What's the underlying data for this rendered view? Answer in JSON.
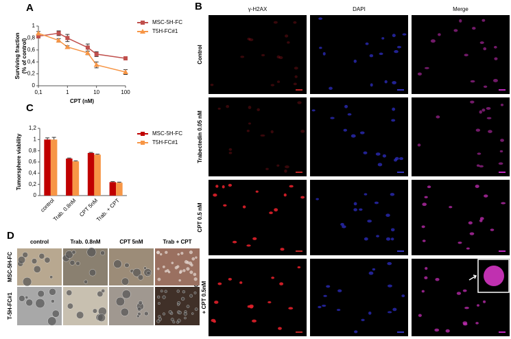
{
  "chart_data": [
    {
      "type": "line",
      "panel_label": "A",
      "xlabel": "CPT (nM)",
      "ylabel": [
        "Surviving fraction",
        "(% of control)"
      ],
      "xscale": "log",
      "x": [
        0.1,
        0.5,
        1,
        5,
        10,
        100
      ],
      "xlim": [
        0.1,
        100
      ],
      "xticks": [
        {
          "value": 0.1,
          "label": "0,1"
        },
        1,
        10,
        100
      ],
      "ylim": [
        0,
        1
      ],
      "yticks": [
        0,
        {
          "value": 0.2,
          "label": "0,2"
        },
        {
          "value": 0.4,
          "label": "0,4"
        },
        {
          "value": 0.6,
          "label": "0,6"
        },
        {
          "value": 0.8,
          "label": "0,8"
        },
        1
      ],
      "grid": false,
      "series": [
        {
          "name": "MSC-5H-FC",
          "color": "#c0504d",
          "marker": "square",
          "values": [
            0.83,
            0.88,
            0.8,
            0.64,
            0.53,
            0.46
          ],
          "errors": [
            0.03,
            0.04,
            0.06,
            0.06,
            0.04,
            0.02
          ]
        },
        {
          "name": "T5H-FC#1",
          "color": "#f79646",
          "marker": "triangle",
          "values": [
            0.88,
            0.76,
            0.65,
            0.55,
            0.35,
            0.23
          ],
          "errors": [
            0.03,
            0.03,
            0.02,
            0.03,
            0.05,
            0.04
          ]
        }
      ]
    },
    {
      "type": "bar",
      "panel_label": "C",
      "ylabel": [
        "Tumorsphere viability"
      ],
      "categories": [
        "control",
        "Trab. 0.8nM",
        "CPT 5nM",
        "Trab. + CPT"
      ],
      "ylim": [
        0,
        1.2
      ],
      "yticks": [
        0,
        {
          "value": 0.2,
          "label": "0,2"
        },
        {
          "value": 0.4,
          "label": "0,4"
        },
        {
          "value": 0.6,
          "label": "0,6"
        },
        {
          "value": 0.8,
          "label": "0,8"
        },
        1,
        {
          "value": 1.2,
          "label": "1,2"
        }
      ],
      "grid": false,
      "series": [
        {
          "name": "MSC-5H-FC",
          "color": "#c00000",
          "values": [
            1,
            0.66,
            0.76,
            0.24
          ],
          "errors": [
            0.03,
            0.01,
            0.01,
            0.01
          ]
        },
        {
          "name": "T5H-FC#1",
          "color": "#f79646",
          "values": [
            1,
            0.61,
            0.73,
            0.23
          ],
          "errors": [
            0.04,
            0.01,
            0.01,
            0.01
          ]
        }
      ]
    }
  ],
  "microscopy": {
    "panel_label": "B",
    "columns": [
      "γ-H2AX",
      "DAPI",
      "Merge"
    ],
    "rows": [
      [
        "Control"
      ],
      [
        "Trabectedin 0.05 nM"
      ],
      [
        "CPT 0.5 nM"
      ],
      [
        "Trabectedin 0.05 nM",
        "+ CPT 0.5nM"
      ]
    ]
  },
  "spheres": {
    "panel_label": "D",
    "columns": [
      "control",
      "Trab. 0.8nM",
      "CPT  5nM",
      "Trab + CPT"
    ],
    "rows": [
      "MSC-5H-FC",
      "T-5H-FC#1"
    ]
  }
}
